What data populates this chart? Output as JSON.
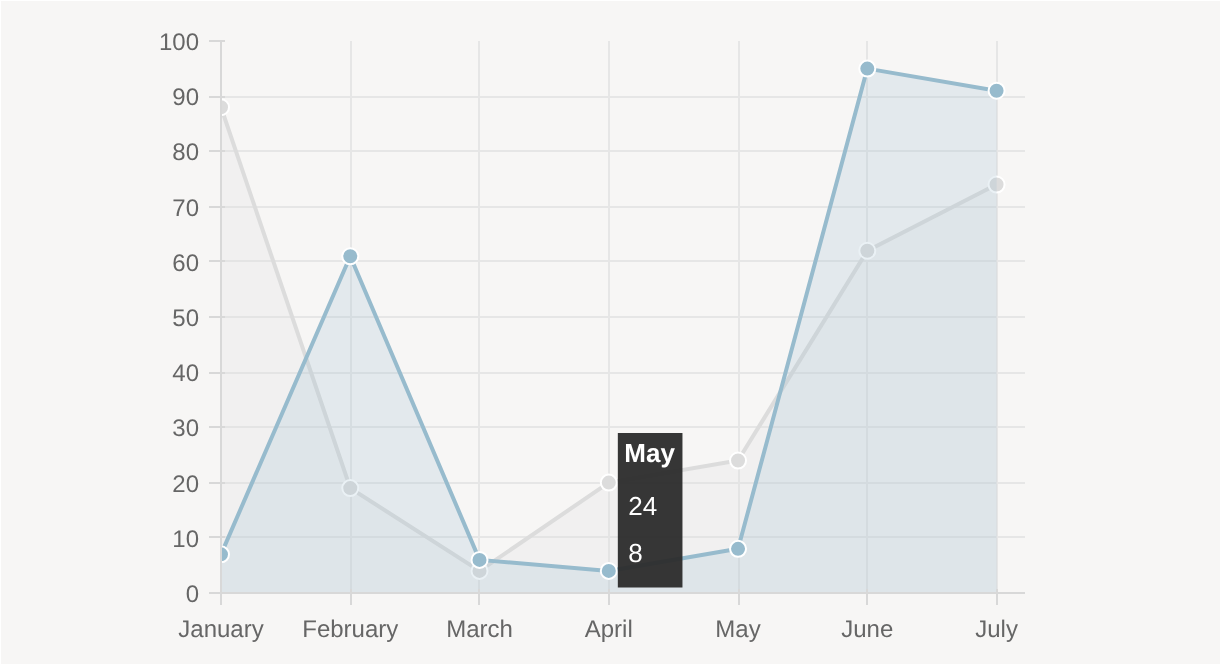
{
  "chart_data": {
    "type": "area",
    "categories": [
      "January",
      "February",
      "March",
      "April",
      "May",
      "June",
      "July"
    ],
    "series": [
      {
        "color": "#dcdcdc",
        "values": [
          88,
          19,
          4,
          20,
          24,
          62,
          74
        ]
      },
      {
        "color": "#97bbcd",
        "values": [
          7,
          61,
          6,
          4,
          8,
          95,
          91
        ]
      }
    ],
    "ylim": [
      0,
      100
    ],
    "yticks": [
      0,
      10,
      20,
      30,
      40,
      50,
      60,
      70,
      80,
      90,
      100
    ],
    "grid": true,
    "marker": "circle",
    "annotations": [
      "May",
      "24",
      "8"
    ]
  }
}
